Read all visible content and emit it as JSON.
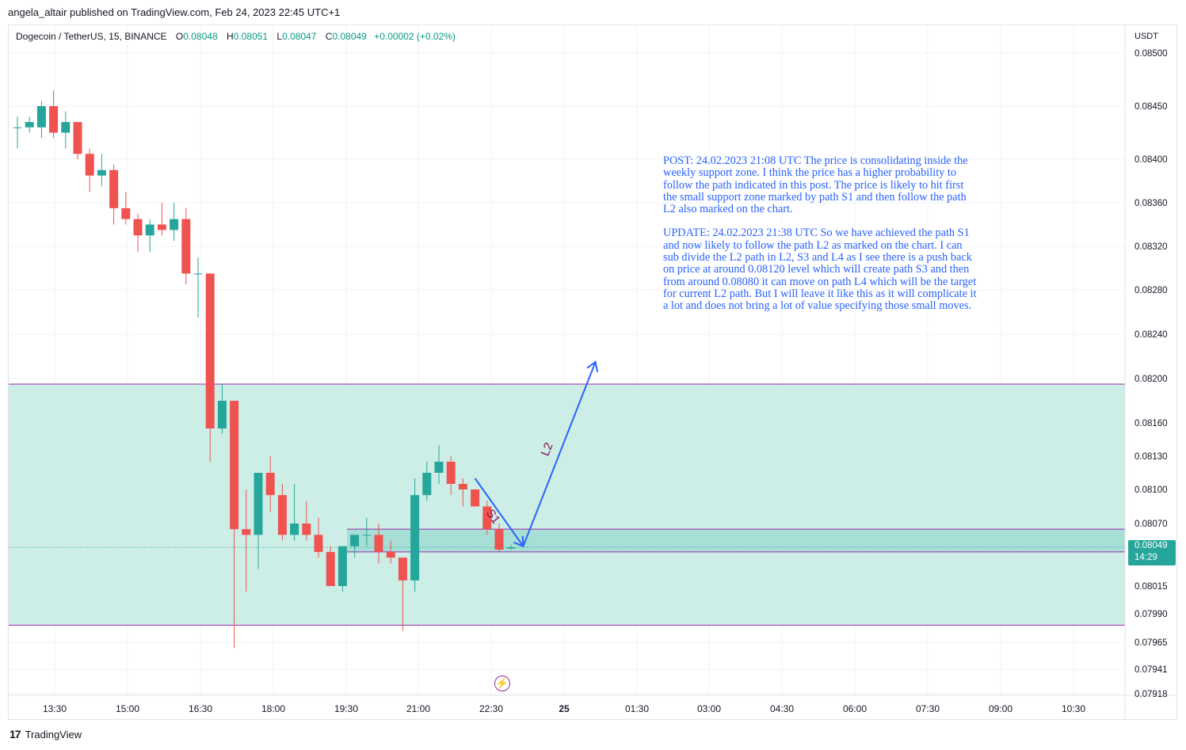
{
  "header": {
    "published_line": "angela_altair published on TradingView.com, Feb 24, 2023 22:45 UTC+1"
  },
  "legend": {
    "symbol": "Dogecoin / TetherUS, 15, BINANCE",
    "o_label": "O",
    "o_value": "0.08048",
    "h_label": "H",
    "h_value": "0.08051",
    "l_label": "L",
    "l_value": "0.08047",
    "c_label": "C",
    "c_value": "0.08049",
    "change": "+0.00002 (+0.02%)"
  },
  "price_axis": {
    "currency": "USDT",
    "current_price": "0.08049",
    "countdown": "14:29"
  },
  "annotation": {
    "post": "POST: 24.02.2023 21:08 UTC The price is consolidating inside the weekly support zone. I think the price has a higher probability to follow the path indicated in this post. The price is likely to hit first the small support zone marked by path S1 and then follow the path L2 also marked on the chart.",
    "update": "UPDATE: 24.02.2023 21:38 UTC So we have achieved the path S1 and now likely to follow the path L2 as marked on the chart. I can sub divide the L2 path in L2, S3 and L4 as I see there is a push back on price at around 0.08120 level which will create path S3 and then from around 0.08080 it can move on path L4 which will be the target for current L2 path. But I will leave it like this as it will complicate it a lot and does not bring a lot of value specifying those small moves."
  },
  "footer": {
    "brand": "TradingView",
    "logo_mark": "17"
  },
  "icons": {
    "lightning_glyph": "⚡"
  },
  "colors": {
    "up": "#26a69a",
    "down": "#ef5350",
    "zone_fill": "#cdeee7",
    "zone_border": "#9c27b0",
    "small_zone_fill": "#a7dfd6",
    "path": "#2962ff",
    "path_label": "#880e4f"
  },
  "chart_data": {
    "type": "candlestick",
    "timeframe": "15",
    "y_ticks": [
      "0.07918",
      "0.07941",
      "0.07965",
      "0.07990",
      "0.08015",
      "0.08070",
      "0.08100",
      "0.08130",
      "0.08160",
      "0.08200",
      "0.08240",
      "0.08280",
      "0.08320",
      "0.08360",
      "0.08400",
      "0.08450",
      "0.08500"
    ],
    "x_ticks": [
      "13:30",
      "15:00",
      "16:30",
      "18:00",
      "19:30",
      "21:00",
      "22:30",
      "25",
      "01:30",
      "03:00",
      "04:30",
      "06:00",
      "07:30",
      "09:00",
      "10:30"
    ],
    "candles": [
      {
        "t": "13:00",
        "o": 0.0843,
        "h": 0.0844,
        "l": 0.0841,
        "c": 0.0843
      },
      {
        "t": "13:15",
        "o": 0.0843,
        "h": 0.0844,
        "l": 0.08425,
        "c": 0.08435
      },
      {
        "t": "13:30",
        "o": 0.0843,
        "h": 0.08455,
        "l": 0.0842,
        "c": 0.0845
      },
      {
        "t": "13:45",
        "o": 0.0845,
        "h": 0.08465,
        "l": 0.0842,
        "c": 0.08425
      },
      {
        "t": "14:00",
        "o": 0.08425,
        "h": 0.08445,
        "l": 0.0841,
        "c": 0.08435
      },
      {
        "t": "14:15",
        "o": 0.08435,
        "h": 0.08435,
        "l": 0.084,
        "c": 0.08405
      },
      {
        "t": "14:30",
        "o": 0.08405,
        "h": 0.0841,
        "l": 0.0837,
        "c": 0.08385
      },
      {
        "t": "14:45",
        "o": 0.08385,
        "h": 0.08405,
        "l": 0.08375,
        "c": 0.0839
      },
      {
        "t": "15:00",
        "o": 0.0839,
        "h": 0.08395,
        "l": 0.0834,
        "c": 0.08355
      },
      {
        "t": "15:15",
        "o": 0.08355,
        "h": 0.0837,
        "l": 0.0834,
        "c": 0.08345
      },
      {
        "t": "15:30",
        "o": 0.08345,
        "h": 0.0835,
        "l": 0.08315,
        "c": 0.0833
      },
      {
        "t": "15:45",
        "o": 0.0833,
        "h": 0.08345,
        "l": 0.08315,
        "c": 0.0834
      },
      {
        "t": "16:00",
        "o": 0.0834,
        "h": 0.0836,
        "l": 0.0833,
        "c": 0.08335
      },
      {
        "t": "16:15",
        "o": 0.08335,
        "h": 0.0836,
        "l": 0.08325,
        "c": 0.08345
      },
      {
        "t": "16:30",
        "o": 0.08345,
        "h": 0.08355,
        "l": 0.08285,
        "c": 0.08295
      },
      {
        "t": "16:45",
        "o": 0.08295,
        "h": 0.0831,
        "l": 0.08255,
        "c": 0.08295
      },
      {
        "t": "17:00",
        "o": 0.08295,
        "h": 0.08295,
        "l": 0.08125,
        "c": 0.08155
      },
      {
        "t": "17:15",
        "o": 0.08155,
        "h": 0.08195,
        "l": 0.0815,
        "c": 0.0818
      },
      {
        "t": "17:30",
        "o": 0.0818,
        "h": 0.0818,
        "l": 0.0796,
        "c": 0.08065
      },
      {
        "t": "17:45",
        "o": 0.08065,
        "h": 0.081,
        "l": 0.0801,
        "c": 0.0806
      },
      {
        "t": "18:00",
        "o": 0.0806,
        "h": 0.08115,
        "l": 0.0803,
        "c": 0.08115
      },
      {
        "t": "18:15",
        "o": 0.08115,
        "h": 0.0813,
        "l": 0.0808,
        "c": 0.08095
      },
      {
        "t": "18:30",
        "o": 0.08095,
        "h": 0.08105,
        "l": 0.08055,
        "c": 0.0806
      },
      {
        "t": "18:45",
        "o": 0.0806,
        "h": 0.08105,
        "l": 0.08055,
        "c": 0.0807
      },
      {
        "t": "19:00",
        "o": 0.0807,
        "h": 0.0809,
        "l": 0.08055,
        "c": 0.0806
      },
      {
        "t": "19:15",
        "o": 0.0806,
        "h": 0.08075,
        "l": 0.0804,
        "c": 0.08045
      },
      {
        "t": "19:30",
        "o": 0.08045,
        "h": 0.0805,
        "l": 0.08015,
        "c": 0.08015
      },
      {
        "t": "19:45",
        "o": 0.08015,
        "h": 0.0805,
        "l": 0.0801,
        "c": 0.0805
      },
      {
        "t": "20:00",
        "o": 0.0805,
        "h": 0.0806,
        "l": 0.0804,
        "c": 0.0806
      },
      {
        "t": "20:15",
        "o": 0.0806,
        "h": 0.08075,
        "l": 0.0805,
        "c": 0.0806
      },
      {
        "t": "20:30",
        "o": 0.0806,
        "h": 0.0807,
        "l": 0.08035,
        "c": 0.08045
      },
      {
        "t": "20:45",
        "o": 0.08045,
        "h": 0.08055,
        "l": 0.08035,
        "c": 0.0804
      },
      {
        "t": "21:00",
        "o": 0.0804,
        "h": 0.0804,
        "l": 0.07975,
        "c": 0.0802
      },
      {
        "t": "21:15",
        "o": 0.0802,
        "h": 0.0811,
        "l": 0.0801,
        "c": 0.08095
      },
      {
        "t": "21:30",
        "o": 0.08095,
        "h": 0.08125,
        "l": 0.0809,
        "c": 0.08115
      },
      {
        "t": "21:45",
        "o": 0.08115,
        "h": 0.0814,
        "l": 0.08105,
        "c": 0.08125
      },
      {
        "t": "22:00",
        "o": 0.08125,
        "h": 0.0813,
        "l": 0.08095,
        "c": 0.08105
      },
      {
        "t": "22:15",
        "o": 0.08105,
        "h": 0.0811,
        "l": 0.08085,
        "c": 0.081
      },
      {
        "t": "22:30",
        "o": 0.081,
        "h": 0.081,
        "l": 0.08085,
        "c": 0.08085
      },
      {
        "t": "22:45",
        "o": 0.08085,
        "h": 0.0809,
        "l": 0.0806,
        "c": 0.08065
      },
      {
        "t": "23:00",
        "o": 0.08065,
        "h": 0.0807,
        "l": 0.08045,
        "c": 0.08047
      },
      {
        "t": "23:15",
        "o": 0.08048,
        "h": 0.08051,
        "l": 0.08047,
        "c": 0.08049
      }
    ],
    "zones": [
      {
        "name": "weekly support zone",
        "top": 0.08195,
        "bottom": 0.0798
      },
      {
        "name": "small support zone",
        "top": 0.08065,
        "bottom": 0.08045
      }
    ],
    "paths": [
      {
        "label": "S1",
        "from": {
          "t": "22:30",
          "price": 0.0811
        },
        "to": {
          "t": "23:30",
          "price": 0.0805
        }
      },
      {
        "label": "L2",
        "from": {
          "t": "23:30",
          "price": 0.0805
        },
        "to": {
          "t": "01:00",
          "price": 0.08215
        }
      }
    ],
    "grid": true,
    "legend": "top-left",
    "ylabel": "USDT"
  }
}
